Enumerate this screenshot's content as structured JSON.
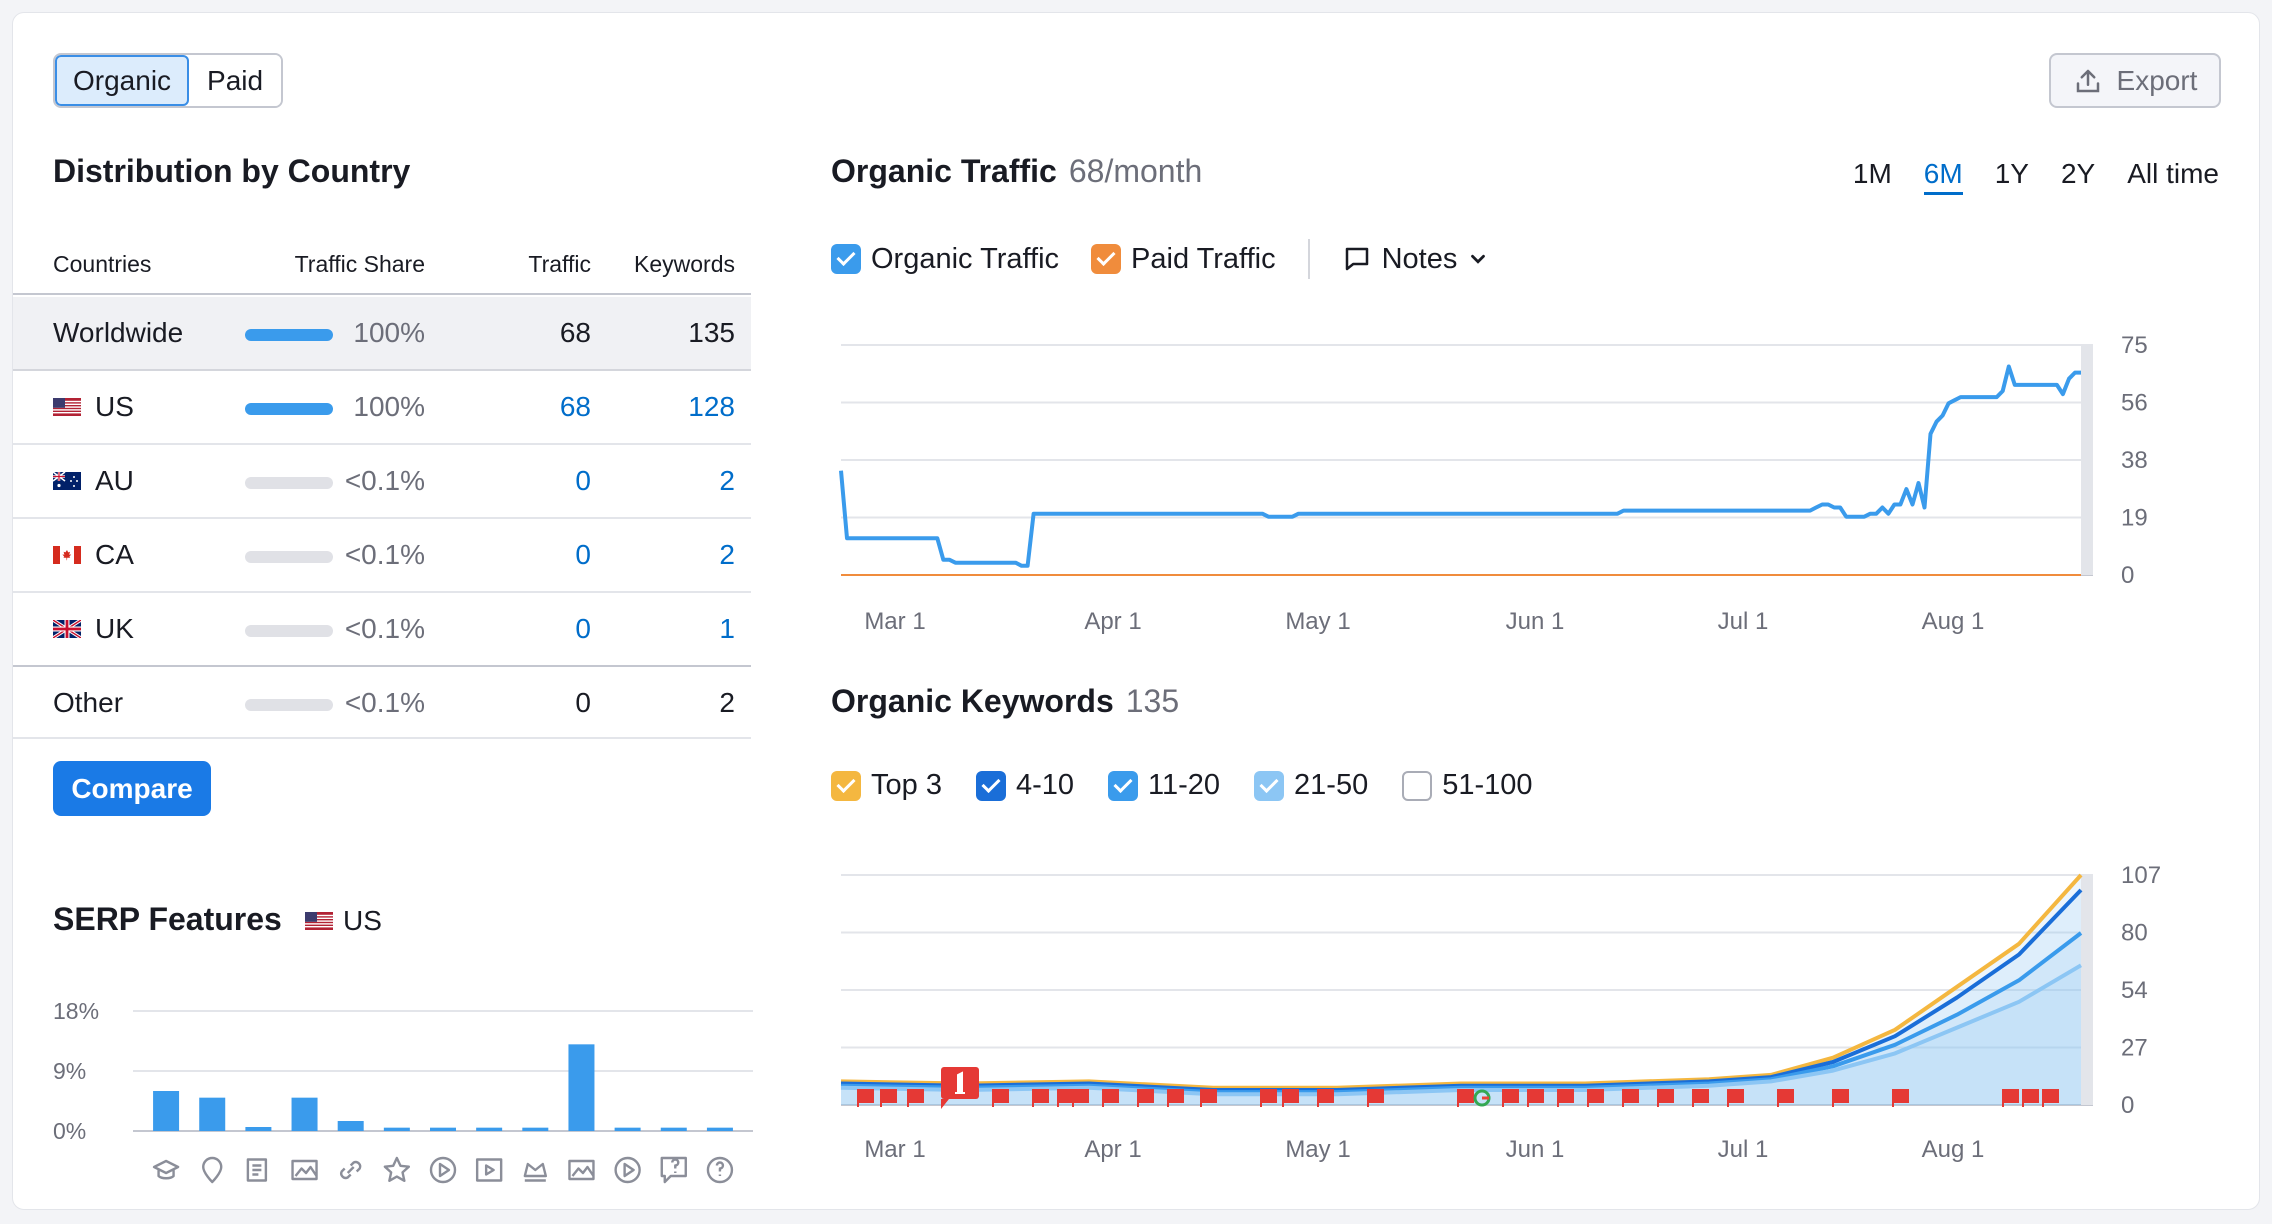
{
  "toggle": {
    "organic": "Organic",
    "paid": "Paid"
  },
  "export_label": "Export",
  "distribution": {
    "title": "Distribution by Country",
    "headers": {
      "countries": "Countries",
      "share": "Traffic Share",
      "traffic": "Traffic",
      "keywords": "Keywords"
    },
    "rows": [
      {
        "name": "Worldwide",
        "share": "100%",
        "traffic": "68",
        "keywords": "135",
        "bar": "full"
      },
      {
        "name": "US",
        "share": "100%",
        "traffic": "68",
        "keywords": "128",
        "bar": "full",
        "flag": "us"
      },
      {
        "name": "AU",
        "share": "<0.1%",
        "traffic": "0",
        "keywords": "2",
        "bar": "empty",
        "flag": "au"
      },
      {
        "name": "CA",
        "share": "<0.1%",
        "traffic": "0",
        "keywords": "2",
        "bar": "empty",
        "flag": "ca"
      },
      {
        "name": "UK",
        "share": "<0.1%",
        "traffic": "0",
        "keywords": "1",
        "bar": "empty",
        "flag": "uk"
      },
      {
        "name": "Other",
        "share": "<0.1%",
        "traffic": "0",
        "keywords": "2",
        "bar": "empty"
      }
    ],
    "compare_label": "Compare"
  },
  "serp": {
    "title": "SERP Features",
    "country": "US"
  },
  "organic_traffic": {
    "title": "Organic Traffic",
    "value": "68/month",
    "ranges": [
      "1M",
      "6M",
      "1Y",
      "2Y",
      "All time"
    ],
    "active_range": "6M",
    "legend": {
      "organic": "Organic Traffic",
      "paid": "Paid Traffic",
      "notes": "Notes"
    }
  },
  "organic_keywords": {
    "title": "Organic Keywords",
    "value": "135",
    "legend": [
      "Top 3",
      "4-10",
      "11-20",
      "21-50",
      "51-100"
    ]
  },
  "colors": {
    "organic": "#3a9bec",
    "paid": "#f08c3c",
    "top3": "#f4b740",
    "r4_10": "#1a6ed8",
    "r11_20": "#3a9bec",
    "r21_50": "#8cc6f4",
    "flag_red": "#e53935"
  },
  "chart_data": [
    {
      "type": "bar",
      "title": "SERP Features",
      "yticks": [
        "18%",
        "9%",
        "0%"
      ],
      "ylim": [
        0,
        18
      ],
      "categories": [
        "featured-snippet",
        "local-pack",
        "reviews",
        "image-pack",
        "sitelinks",
        "top-stories",
        "video",
        "video-carousel",
        "knowledge-panel",
        "image",
        "video-2",
        "faq",
        "people-also-ask"
      ],
      "values": [
        6,
        5,
        0.6,
        5,
        1.5,
        0.5,
        0.5,
        0.5,
        0.5,
        13,
        0.5,
        0.5,
        0.5
      ]
    },
    {
      "type": "line",
      "title": "Organic Traffic",
      "yticks": [
        "75",
        "56",
        "38",
        "19",
        "0"
      ],
      "ylim": [
        0,
        75
      ],
      "xticks": [
        "Mar 1",
        "Apr 1",
        "May 1",
        "Jun 1",
        "Jul 1",
        "Aug 1"
      ],
      "series": [
        {
          "name": "Organic Traffic",
          "values": [
            34,
            12,
            12,
            12,
            12,
            12,
            12,
            12,
            12,
            12,
            12,
            12,
            12,
            12,
            12,
            12,
            12,
            5,
            5,
            4,
            4,
            4,
            4,
            4,
            4,
            4,
            4,
            4,
            4,
            4,
            3,
            3,
            20,
            20,
            20,
            20,
            20,
            20,
            20,
            20,
            20,
            20,
            20,
            20,
            20,
            20,
            20,
            20,
            20,
            20,
            20,
            20,
            20,
            20,
            20,
            20,
            20,
            20,
            20,
            20,
            20,
            20,
            20,
            20,
            20,
            20,
            20,
            20,
            20,
            20,
            20,
            19,
            19,
            19,
            19,
            19,
            20,
            20,
            20,
            20,
            20,
            20,
            20,
            20,
            20,
            20,
            20,
            20,
            20,
            20,
            20,
            20,
            20,
            20,
            20,
            20,
            20,
            20,
            20,
            20,
            20,
            20,
            20,
            20,
            20,
            20,
            20,
            20,
            20,
            20,
            20,
            20,
            20,
            20,
            20,
            20,
            20,
            20,
            20,
            20,
            20,
            20,
            20,
            20,
            20,
            20,
            20,
            20,
            20,
            20,
            21,
            21,
            21,
            21,
            21,
            21,
            21,
            21,
            21,
            21,
            21,
            21,
            21,
            21,
            21,
            21,
            21,
            21,
            21,
            21,
            21,
            21,
            21,
            21,
            21,
            21,
            21,
            21,
            21,
            21,
            21,
            21,
            22,
            23,
            23,
            22,
            22,
            19,
            19,
            19,
            19,
            20,
            20,
            22,
            20,
            23,
            23,
            28,
            23,
            30,
            22,
            46,
            50,
            52,
            56,
            57,
            58,
            58,
            58,
            58,
            58,
            58,
            58,
            60,
            68,
            62,
            62,
            62,
            62,
            62,
            62,
            62,
            62,
            59,
            64,
            66,
            66
          ]
        },
        {
          "name": "Paid Traffic",
          "values": [
            0,
            0
          ]
        }
      ]
    },
    {
      "type": "area",
      "title": "Organic Keywords",
      "yticks": [
        "107",
        "80",
        "54",
        "27",
        "0"
      ],
      "ylim": [
        0,
        107
      ],
      "xticks": [
        "Mar 1",
        "Apr 1",
        "May 1",
        "Jun 1",
        "Jul 1",
        "Aug 1"
      ],
      "x": [
        0,
        0.1,
        0.2,
        0.3,
        0.4,
        0.5,
        0.6,
        0.7,
        0.75,
        0.8,
        0.85,
        0.9,
        0.95,
        1.0
      ],
      "series": [
        {
          "name": "Top 3",
          "values": [
            11,
            10,
            11,
            8,
            8,
            10,
            10,
            12,
            14,
            22,
            35,
            55,
            75,
            107
          ]
        },
        {
          "name": "4-10",
          "values": [
            10,
            9,
            10,
            7,
            7,
            9,
            9,
            11,
            13,
            20,
            32,
            50,
            70,
            100
          ]
        },
        {
          "name": "11-20",
          "values": [
            9,
            8,
            9,
            6,
            6,
            8,
            8,
            10,
            12,
            18,
            28,
            42,
            58,
            80
          ]
        },
        {
          "name": "21-50",
          "values": [
            8,
            7,
            8,
            5,
            5,
            7,
            7,
            9,
            11,
            16,
            24,
            36,
            48,
            65
          ]
        }
      ]
    }
  ]
}
